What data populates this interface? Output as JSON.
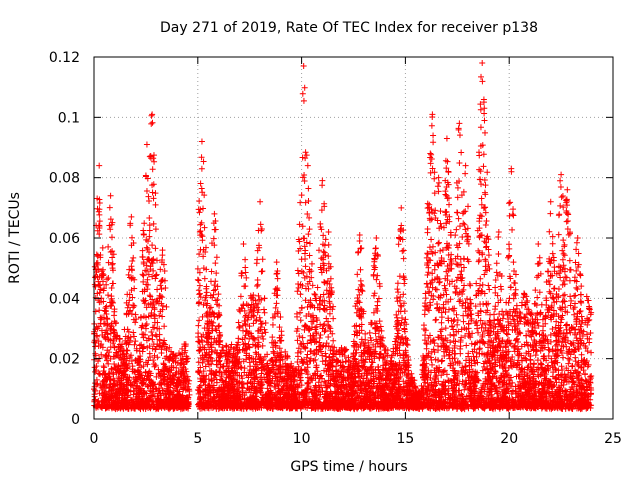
{
  "chart_data": {
    "type": "scatter",
    "title": "Day 271 of 2019, Rate Of TEC Index for receiver p138",
    "xlabel": "GPS time / hours",
    "ylabel": "ROTI / TECUs",
    "xlim": [
      0,
      25
    ],
    "ylim": [
      0,
      0.12
    ],
    "x_ticks": [
      0,
      5,
      10,
      15,
      20,
      25
    ],
    "x_tick_labels": [
      "0",
      "5",
      "10",
      "15",
      "20",
      "25"
    ],
    "y_ticks": [
      0,
      0.02,
      0.04,
      0.06,
      0.08,
      0.1,
      0.12
    ],
    "y_tick_labels": [
      "0",
      "0.02",
      "0.04",
      "0.06",
      "0.08",
      "0.1",
      "0.12"
    ],
    "grid": true,
    "marker": "plus",
    "marker_color": "#ff0000",
    "data_range_hours": [
      0,
      23.95
    ],
    "gap_hours": [
      4.6,
      5.0
    ],
    "baseline_roti": 0.004,
    "series": [
      {
        "name": "p138",
        "peaks": [
          {
            "x": 0.25,
            "y": 0.084
          },
          {
            "x": 0.8,
            "y": 0.074
          },
          {
            "x": 1.8,
            "y": 0.067
          },
          {
            "x": 2.55,
            "y": 0.091
          },
          {
            "x": 2.8,
            "y": 0.101
          },
          {
            "x": 3.3,
            "y": 0.056
          },
          {
            "x": 5.1,
            "y": 0.062
          },
          {
            "x": 5.2,
            "y": 0.092
          },
          {
            "x": 5.8,
            "y": 0.068
          },
          {
            "x": 7.2,
            "y": 0.058
          },
          {
            "x": 8.0,
            "y": 0.072
          },
          {
            "x": 8.8,
            "y": 0.052
          },
          {
            "x": 10.1,
            "y": 0.117
          },
          {
            "x": 10.3,
            "y": 0.084
          },
          {
            "x": 11.0,
            "y": 0.079
          },
          {
            "x": 11.3,
            "y": 0.062
          },
          {
            "x": 12.8,
            "y": 0.061
          },
          {
            "x": 13.6,
            "y": 0.06
          },
          {
            "x": 14.8,
            "y": 0.07
          },
          {
            "x": 16.2,
            "y": 0.088
          },
          {
            "x": 16.3,
            "y": 0.101
          },
          {
            "x": 16.6,
            "y": 0.08
          },
          {
            "x": 17.0,
            "y": 0.093
          },
          {
            "x": 17.6,
            "y": 0.098
          },
          {
            "x": 17.9,
            "y": 0.084
          },
          {
            "x": 18.7,
            "y": 0.118
          },
          {
            "x": 18.8,
            "y": 0.103
          },
          {
            "x": 19.5,
            "y": 0.062
          },
          {
            "x": 20.1,
            "y": 0.083
          },
          {
            "x": 21.4,
            "y": 0.058
          },
          {
            "x": 22.0,
            "y": 0.072
          },
          {
            "x": 22.5,
            "y": 0.081
          },
          {
            "x": 22.8,
            "y": 0.076
          },
          {
            "x": 23.3,
            "y": 0.06
          }
        ]
      }
    ]
  }
}
